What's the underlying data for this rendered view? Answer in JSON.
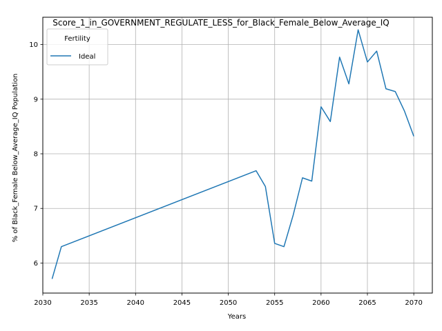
{
  "chart_data": {
    "type": "line",
    "title": "Score_1_in_GOVERNMENT_REGULATE_LESS_for_Black_Female_Below_Average_IQ",
    "xlabel": "Years",
    "ylabel": "% of Black_Female Below_Average_IQ Population",
    "xlim": [
      2030,
      2072
    ],
    "ylim": [
      5.45,
      10.5
    ],
    "x_ticks": [
      2030,
      2035,
      2040,
      2045,
      2050,
      2055,
      2060,
      2065,
      2070
    ],
    "y_ticks": [
      6,
      7,
      8,
      9,
      10
    ],
    "grid": true,
    "legend": {
      "title": "Fertility",
      "placement": "top-left"
    },
    "series": [
      {
        "name": "Ideal",
        "color": "#1f77b4",
        "x": [
          2031,
          2032,
          2053,
          2054,
          2055,
          2056,
          2057,
          2058,
          2059,
          2060,
          2061,
          2062,
          2063,
          2064,
          2065,
          2066,
          2067,
          2068,
          2069,
          2070
        ],
        "y": [
          5.71,
          6.3,
          7.69,
          7.4,
          6.36,
          6.3,
          6.88,
          7.56,
          7.5,
          8.86,
          8.59,
          9.77,
          9.28,
          10.27,
          9.68,
          9.88,
          9.19,
          9.14,
          8.78,
          8.32
        ]
      }
    ]
  }
}
